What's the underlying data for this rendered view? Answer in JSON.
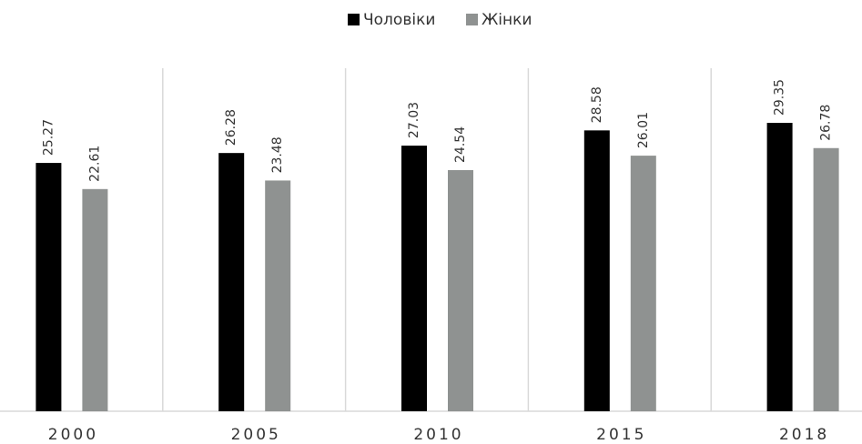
{
  "chart_data": {
    "type": "bar",
    "categories": [
      "2000",
      "2005",
      "2010",
      "2015",
      "2018"
    ],
    "series": [
      {
        "name": "Чоловіки",
        "color": "#000000",
        "values": [
          25.27,
          26.28,
          27.03,
          28.58,
          29.35
        ]
      },
      {
        "name": "Жінки",
        "color": "#8f9291",
        "values": [
          22.61,
          23.48,
          24.54,
          26.01,
          26.78
        ]
      }
    ],
    "ylim": [
      0,
      35
    ],
    "legend": "top"
  }
}
